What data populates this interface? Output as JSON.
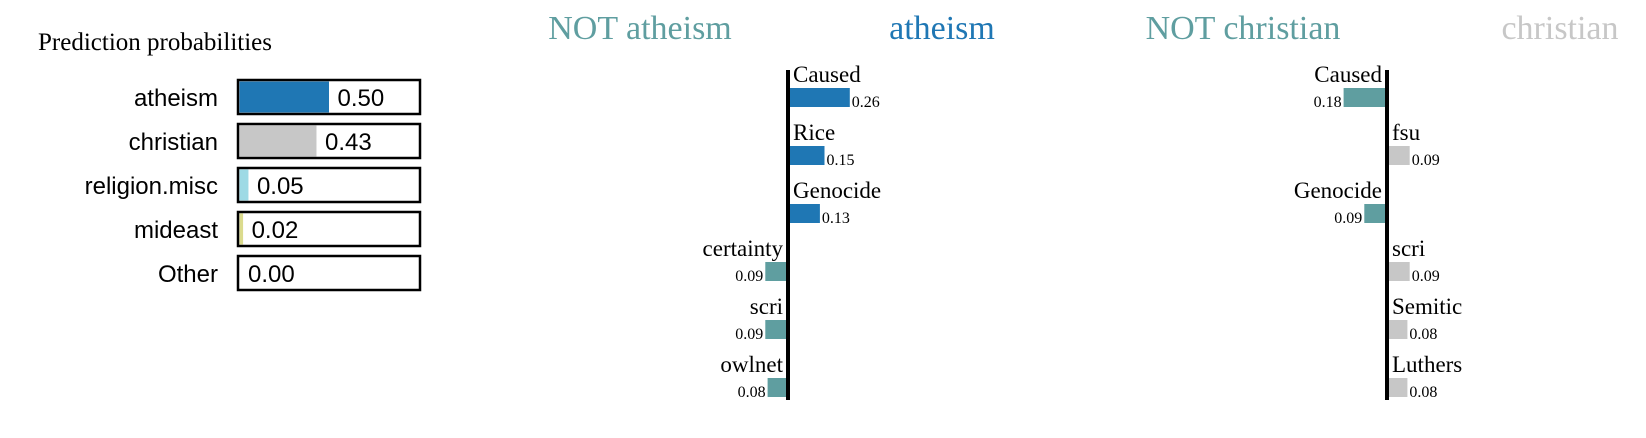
{
  "chart_data": [
    {
      "type": "bar",
      "title": "Prediction probabilities",
      "orientation": "horizontal",
      "categories": [
        "atheism",
        "christian",
        "religion.misc",
        "mideast",
        "Other"
      ],
      "values": [
        0.5,
        0.43,
        0.05,
        0.02,
        0.0
      ],
      "value_labels": [
        "0.50",
        "0.43",
        "0.05",
        "0.02",
        "0.00"
      ],
      "colors": [
        "#1f77b4",
        "#c7c7c7",
        "#9edae5",
        "#dbdb8d",
        "#ffffff"
      ],
      "xlim": [
        0,
        1
      ]
    },
    {
      "type": "bar",
      "orientation": "horizontal-diverging",
      "negative_label": "NOT atheism",
      "positive_label": "atheism",
      "negative_color": "#5f9ea0",
      "positive_color": "#1f77b4",
      "features": [
        "Caused",
        "Rice",
        "Genocide",
        "certainty",
        "scri",
        "owlnet"
      ],
      "values": [
        0.26,
        0.15,
        0.13,
        -0.09,
        -0.09,
        -0.08
      ],
      "value_labels": [
        "0.26",
        "0.15",
        "0.13",
        "0.09",
        "0.09",
        "0.08"
      ]
    },
    {
      "type": "bar",
      "orientation": "horizontal-diverging",
      "negative_label": "NOT christian",
      "positive_label": "christian",
      "negative_color": "#5f9ea0",
      "positive_color": "#c7c7c7",
      "features": [
        "Caused",
        "fsu",
        "Genocide",
        "scri",
        "Semitic",
        "Luthers"
      ],
      "values": [
        -0.18,
        0.09,
        -0.09,
        0.09,
        0.08,
        0.08
      ],
      "value_labels": [
        "0.18",
        "0.09",
        "0.09",
        "0.09",
        "0.08",
        "0.08"
      ]
    }
  ]
}
